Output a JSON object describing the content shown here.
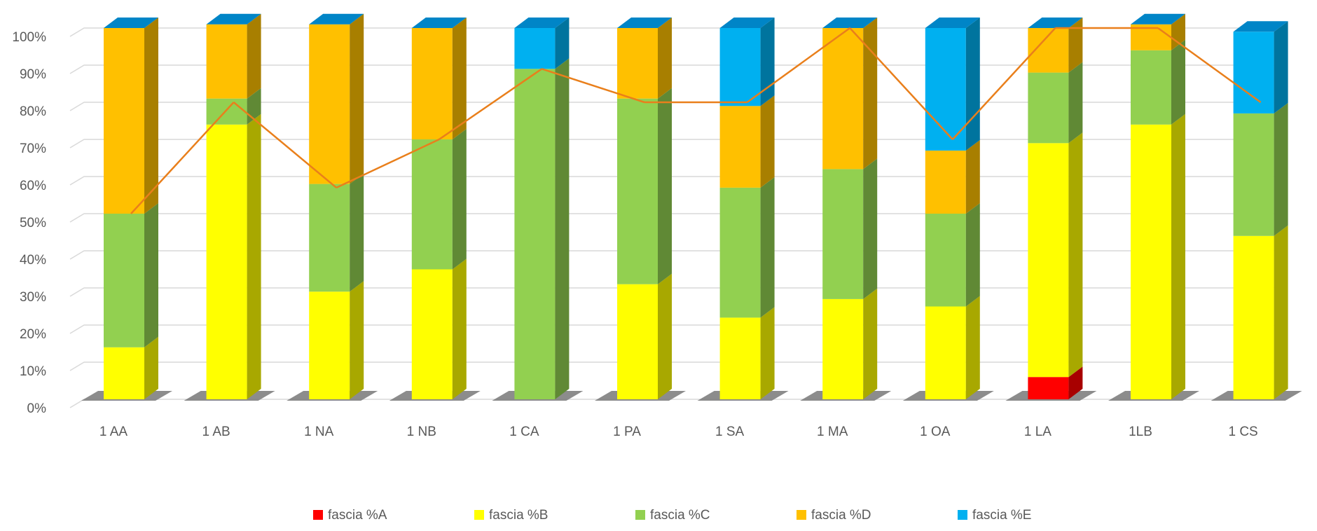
{
  "chart_data": {
    "type": "bar",
    "stacked": true,
    "percent_stacked": true,
    "three_d": true,
    "categories": [
      "1 AA",
      "1 AB",
      "1 NA",
      "1 NB",
      "1 CA",
      "1 PA",
      "1 SA",
      "1 MA",
      "1 OA",
      "1 LA",
      "1LB",
      "1 CS"
    ],
    "series": [
      {
        "name": "fascia %A",
        "color": "#FF0000",
        "values": [
          0,
          0,
          0,
          0,
          0,
          0,
          0,
          0,
          0,
          6,
          0,
          0
        ]
      },
      {
        "name": "fascia %B",
        "color": "#FFFF00",
        "values": [
          14,
          74,
          29,
          35,
          0,
          31,
          22,
          27,
          25,
          63,
          74,
          44
        ]
      },
      {
        "name": "fascia %C",
        "color": "#92D050",
        "values": [
          36,
          7,
          29,
          35,
          89,
          50,
          35,
          35,
          25,
          19,
          20,
          33
        ]
      },
      {
        "name": "fascia %D",
        "color": "#FFC000",
        "values": [
          50,
          20,
          43,
          30,
          0,
          19,
          22,
          38,
          17,
          12,
          7,
          0
        ]
      },
      {
        "name": "fascia %E",
        "color": "#00B0F0",
        "values": [
          0,
          0,
          0,
          0,
          11,
          0,
          21,
          0,
          33,
          0,
          0,
          22
        ]
      }
    ],
    "trend_line": {
      "values": [
        50,
        80,
        57,
        70,
        89,
        80,
        80,
        100,
        70,
        100,
        100,
        80
      ]
    },
    "y_ticks": [
      "0%",
      "10%",
      "20%",
      "30%",
      "40%",
      "50%",
      "60%",
      "70%",
      "80%",
      "90%",
      "100%"
    ],
    "ylim": [
      0,
      100
    ],
    "grid": true,
    "legend_position": "bottom"
  }
}
